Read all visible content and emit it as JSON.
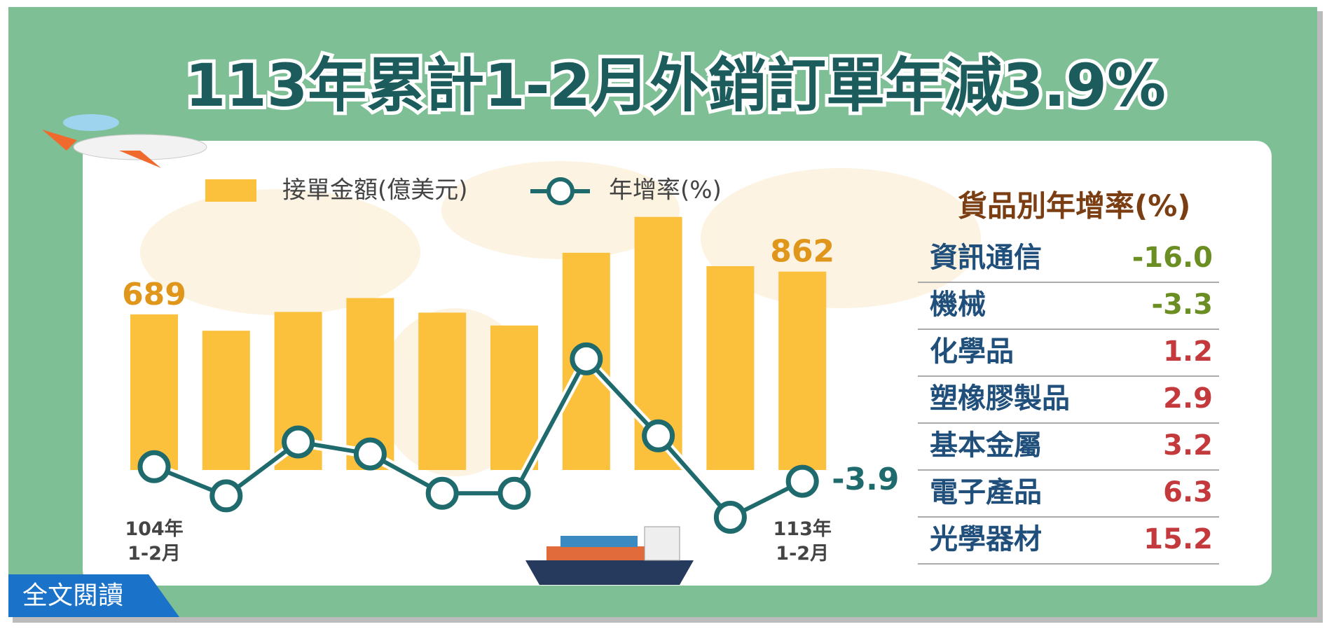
{
  "title": "113年累計1-2月外銷訂單年減3.9%",
  "chart_data": {
    "type": "bar-line",
    "categories": [
      "104年\n1-2月",
      null,
      null,
      null,
      null,
      null,
      null,
      null,
      null,
      "113年\n1-2月"
    ],
    "series": [
      {
        "name": "接單金額(億美元)",
        "color": "#fbc13c",
        "values": [
          689,
          623,
          699,
          755,
          696,
          644,
          938,
          1083,
          884,
          862
        ]
      },
      {
        "name": "年增率(%)",
        "color": "#1e6a6c",
        "axis": "y2",
        "values": [
          2.3,
          -10.1,
          12.8,
          7.7,
          -9.0,
          -9.0,
          48.1,
          15.4,
          -19.2,
          -3.9
        ]
      }
    ],
    "ylim": [
      60,
      1150
    ],
    "y2lim": [
      -25,
      50
    ]
  },
  "table": {
    "title": "貨品別年增率(%)",
    "rows": [
      [
        "資訊通信",
        "-16.0"
      ],
      [
        "機械",
        "-3.3"
      ],
      [
        "化學品",
        "1.2"
      ],
      [
        "塑橡膠製品",
        "2.9"
      ],
      [
        "基本金屬",
        "3.2"
      ],
      [
        "電子產品",
        "6.3"
      ],
      [
        "光學器材",
        "15.2"
      ]
    ]
  },
  "button": "全文閱讀"
}
